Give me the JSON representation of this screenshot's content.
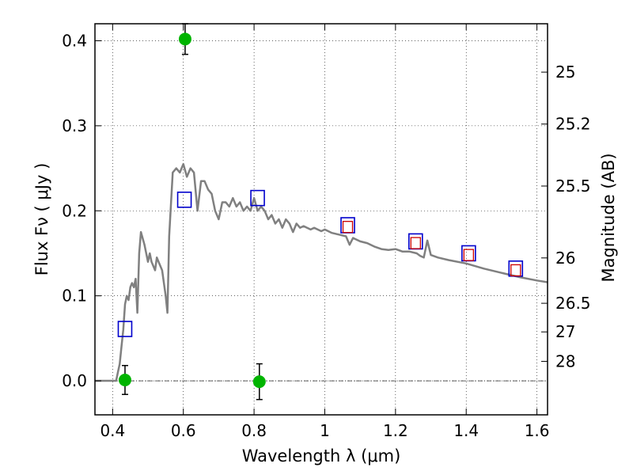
{
  "chart_data": {
    "type": "scatter",
    "xlabel": "Wavelength  λ (μm)",
    "ylabel": "Flux  Fν  ( μJy )",
    "y2label": "Magnitude (AB)",
    "xlim": [
      0.35,
      1.63
    ],
    "ylim": [
      -0.04,
      0.42
    ],
    "grid": true,
    "x_ticks": [
      {
        "value": 0.4,
        "label": "0.4"
      },
      {
        "value": 0.6,
        "label": "0.6"
      },
      {
        "value": 0.8,
        "label": "0.8"
      },
      {
        "value": 1.0,
        "label": "1"
      },
      {
        "value": 1.2,
        "label": "1.2"
      },
      {
        "value": 1.4,
        "label": "1.4"
      },
      {
        "value": 1.6,
        "label": "1.6"
      }
    ],
    "y_ticks": [
      {
        "value": 0.0,
        "label": "0.0"
      },
      {
        "value": 0.1,
        "label": "0.1"
      },
      {
        "value": 0.2,
        "label": "0.2"
      },
      {
        "value": 0.3,
        "label": "0.3"
      },
      {
        "value": 0.4,
        "label": "0.4"
      }
    ],
    "mag_ticks": [
      {
        "value": 25,
        "label": "25"
      },
      {
        "value": 25.2,
        "label": "25.2"
      },
      {
        "value": 25.5,
        "label": "25.5"
      },
      {
        "value": 26,
        "label": "26"
      },
      {
        "value": 26.5,
        "label": "26.5"
      },
      {
        "value": 27,
        "label": "27"
      },
      {
        "value": 28,
        "label": "28"
      }
    ],
    "series": [
      {
        "type": "line",
        "color": "#808080",
        "points": [
          [
            0.35,
            0.0
          ],
          [
            0.41,
            0.0
          ],
          [
            0.415,
            0.01
          ],
          [
            0.42,
            0.02
          ],
          [
            0.425,
            0.04
          ],
          [
            0.43,
            0.06
          ],
          [
            0.435,
            0.09
          ],
          [
            0.44,
            0.1
          ],
          [
            0.445,
            0.095
          ],
          [
            0.45,
            0.11
          ],
          [
            0.455,
            0.115
          ],
          [
            0.46,
            0.11
          ],
          [
            0.465,
            0.12
          ],
          [
            0.47,
            0.08
          ],
          [
            0.475,
            0.15
          ],
          [
            0.48,
            0.175
          ],
          [
            0.49,
            0.16
          ],
          [
            0.5,
            0.14
          ],
          [
            0.505,
            0.15
          ],
          [
            0.51,
            0.14
          ],
          [
            0.52,
            0.13
          ],
          [
            0.525,
            0.145
          ],
          [
            0.53,
            0.14
          ],
          [
            0.54,
            0.13
          ],
          [
            0.55,
            0.1
          ],
          [
            0.555,
            0.08
          ],
          [
            0.56,
            0.17
          ],
          [
            0.57,
            0.245
          ],
          [
            0.58,
            0.25
          ],
          [
            0.59,
            0.245
          ],
          [
            0.6,
            0.255
          ],
          [
            0.61,
            0.24
          ],
          [
            0.62,
            0.25
          ],
          [
            0.63,
            0.245
          ],
          [
            0.64,
            0.2
          ],
          [
            0.65,
            0.235
          ],
          [
            0.66,
            0.235
          ],
          [
            0.67,
            0.225
          ],
          [
            0.68,
            0.22
          ],
          [
            0.69,
            0.2
          ],
          [
            0.7,
            0.19
          ],
          [
            0.71,
            0.21
          ],
          [
            0.72,
            0.21
          ],
          [
            0.73,
            0.205
          ],
          [
            0.74,
            0.215
          ],
          [
            0.75,
            0.205
          ],
          [
            0.76,
            0.21
          ],
          [
            0.77,
            0.2
          ],
          [
            0.78,
            0.205
          ],
          [
            0.79,
            0.2
          ],
          [
            0.8,
            0.215
          ],
          [
            0.81,
            0.2
          ],
          [
            0.82,
            0.205
          ],
          [
            0.83,
            0.2
          ],
          [
            0.84,
            0.19
          ],
          [
            0.85,
            0.195
          ],
          [
            0.86,
            0.185
          ],
          [
            0.87,
            0.19
          ],
          [
            0.88,
            0.18
          ],
          [
            0.89,
            0.19
          ],
          [
            0.9,
            0.185
          ],
          [
            0.91,
            0.175
          ],
          [
            0.92,
            0.185
          ],
          [
            0.93,
            0.18
          ],
          [
            0.94,
            0.182
          ],
          [
            0.95,
            0.18
          ],
          [
            0.96,
            0.178
          ],
          [
            0.97,
            0.18
          ],
          [
            0.98,
            0.178
          ],
          [
            0.99,
            0.176
          ],
          [
            1.0,
            0.178
          ],
          [
            1.02,
            0.174
          ],
          [
            1.04,
            0.172
          ],
          [
            1.06,
            0.17
          ],
          [
            1.07,
            0.16
          ],
          [
            1.08,
            0.168
          ],
          [
            1.1,
            0.164
          ],
          [
            1.12,
            0.162
          ],
          [
            1.14,
            0.158
          ],
          [
            1.16,
            0.155
          ],
          [
            1.18,
            0.154
          ],
          [
            1.2,
            0.155
          ],
          [
            1.22,
            0.152
          ],
          [
            1.24,
            0.152
          ],
          [
            1.26,
            0.15
          ],
          [
            1.27,
            0.147
          ],
          [
            1.28,
            0.145
          ],
          [
            1.29,
            0.165
          ],
          [
            1.3,
            0.148
          ],
          [
            1.32,
            0.145
          ],
          [
            1.35,
            0.142
          ],
          [
            1.4,
            0.138
          ],
          [
            1.45,
            0.132
          ],
          [
            1.5,
            0.127
          ],
          [
            1.55,
            0.122
          ],
          [
            1.6,
            0.118
          ],
          [
            1.63,
            0.116
          ]
        ]
      },
      {
        "type": "scatter",
        "marker": "square",
        "color": "#0000cc",
        "points": [
          [
            0.435,
            0.061
          ],
          [
            0.603,
            0.213
          ],
          [
            0.81,
            0.215
          ],
          [
            1.065,
            0.183
          ],
          [
            1.257,
            0.164
          ],
          [
            1.407,
            0.15
          ],
          [
            1.54,
            0.132
          ]
        ]
      },
      {
        "type": "scatter",
        "marker": "square-small",
        "color": "#cc0000",
        "points": [
          [
            1.065,
            0.181
          ],
          [
            1.257,
            0.162
          ],
          [
            1.407,
            0.148
          ],
          [
            1.54,
            0.13
          ]
        ]
      },
      {
        "type": "scatter",
        "marker": "circle",
        "color": "#00b400",
        "points": [
          [
            0.435,
            0.001,
            0.017
          ],
          [
            0.605,
            0.402,
            0.018
          ],
          [
            0.815,
            -0.001,
            0.021
          ]
        ]
      }
    ]
  }
}
